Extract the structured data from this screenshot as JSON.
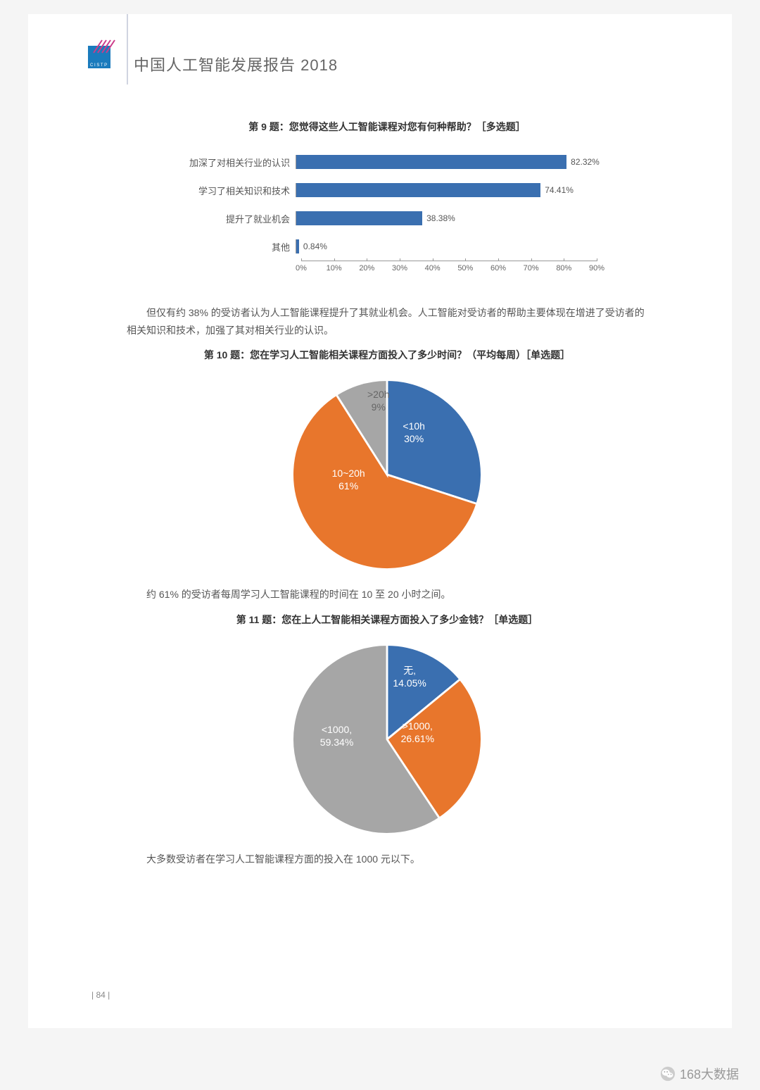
{
  "header": {
    "title": "中国人工智能发展报告 2018",
    "logo_bg": "#1a7bbd",
    "logo_accent": "#ffffff"
  },
  "page_number": "| 84 |",
  "watermark": "168大数据",
  "colors": {
    "blue": "#3a6fb0",
    "orange": "#e8762c",
    "grey": "#a6a6a6",
    "text": "#555555",
    "axis": "#999999"
  },
  "bar_chart": {
    "title": "第 9 题：您觉得这些人工智能课程对您有何种帮助？［多选题］",
    "bar_color": "#3a6fb0",
    "label_fontsize": 13,
    "value_fontsize": 12,
    "xmax": 90,
    "xtick_step": 10,
    "xticks": [
      "0%",
      "10%",
      "20%",
      "30%",
      "40%",
      "50%",
      "60%",
      "70%",
      "80%",
      "90%"
    ],
    "rows": [
      {
        "label": "加深了对相关行业的认识",
        "value": 82.32,
        "value_label": "82.32%"
      },
      {
        "label": "学习了相关知识和技术",
        "value": 74.41,
        "value_label": "74.41%"
      },
      {
        "label": "提升了就业机会",
        "value": 38.38,
        "value_label": "38.38%"
      },
      {
        "label": "其他",
        "value": 0.84,
        "value_label": "0.84%"
      }
    ],
    "caption": "但仅有约 38% 的受访者认为人工智能课程提升了其就业机会。人工智能对受访者的帮助主要体现在增进了受访者的相关知识和技术，加强了其对相关行业的认识。"
  },
  "pie1": {
    "title": "第 10 题：您在学习人工智能相关课程方面投入了多少时间？（平均每周）［单选题］",
    "slices": [
      {
        "label": "<10h",
        "pct_label": "30%",
        "value": 30,
        "color": "#3a6fb0"
      },
      {
        "label": "10~20h",
        "pct_label": "61%",
        "value": 61,
        "color": "#e8762c"
      },
      {
        "label": ">20h",
        "pct_label": "9%",
        "value": 9,
        "color": "#a6a6a6"
      }
    ],
    "caption": "约 61% 的受访者每周学习人工智能课程的时间在 10 至 20 小时之间。"
  },
  "pie2": {
    "title": "第 11 题：您在上人工智能相关课程方面投入了多少金钱？［单选题］",
    "slices": [
      {
        "label": "无,",
        "pct_label": "14.05%",
        "value": 14.05,
        "color": "#3a6fb0"
      },
      {
        "label": ">1000,",
        "pct_label": "26.61%",
        "value": 26.61,
        "color": "#e8762c"
      },
      {
        "label": "<1000,",
        "pct_label": "59.34%",
        "value": 59.34,
        "color": "#a6a6a6"
      }
    ],
    "caption": "大多数受访者在学习人工智能课程方面的投入在 1000 元以下。"
  }
}
